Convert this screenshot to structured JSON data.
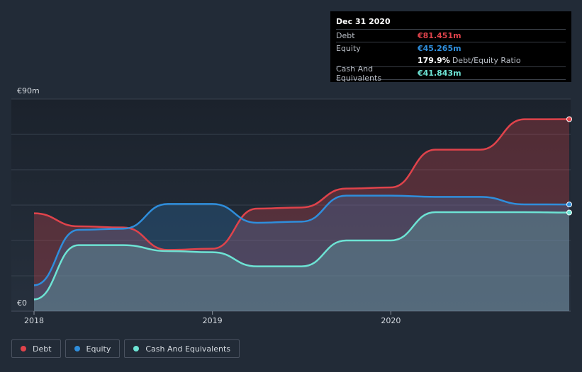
{
  "chart_data": {
    "type": "area",
    "currency_labels": {
      "top": "€90m",
      "bottom": "€0"
    },
    "ylim": [
      0,
      90
    ],
    "x_ticks": [
      {
        "label": "2018",
        "t": 2018.0
      },
      {
        "label": "2019",
        "t": 2019.0
      },
      {
        "label": "2020",
        "t": 2020.0
      }
    ],
    "xlim": [
      2018.0,
      2021.0
    ],
    "series": [
      {
        "name": "Debt",
        "color": "#e0434b",
        "points": [
          [
            2018.0,
            41.5
          ],
          [
            2018.25,
            36
          ],
          [
            2018.5,
            35.5
          ],
          [
            2018.75,
            26
          ],
          [
            2019.0,
            26.5
          ],
          [
            2019.25,
            43.5
          ],
          [
            2019.5,
            44
          ],
          [
            2019.75,
            52
          ],
          [
            2020.0,
            52.5
          ],
          [
            2020.25,
            68.5
          ],
          [
            2020.5,
            68.5
          ],
          [
            2020.75,
            81.4
          ],
          [
            2021.0,
            81.451
          ]
        ]
      },
      {
        "name": "Equity",
        "color": "#2f8edc",
        "points": [
          [
            2018.0,
            11
          ],
          [
            2018.25,
            34.5
          ],
          [
            2018.5,
            35
          ],
          [
            2018.75,
            45.5
          ],
          [
            2019.0,
            45.5
          ],
          [
            2019.25,
            37.5
          ],
          [
            2019.5,
            38
          ],
          [
            2019.75,
            49
          ],
          [
            2020.0,
            49
          ],
          [
            2020.25,
            48.5
          ],
          [
            2020.5,
            48.5
          ],
          [
            2020.75,
            45.3
          ],
          [
            2021.0,
            45.265
          ]
        ]
      },
      {
        "name": "Cash And Equivalents",
        "color": "#6de3d4",
        "points": [
          [
            2018.0,
            5
          ],
          [
            2018.25,
            28
          ],
          [
            2018.5,
            28
          ],
          [
            2018.75,
            25.5
          ],
          [
            2019.0,
            25
          ],
          [
            2019.25,
            19
          ],
          [
            2019.5,
            19
          ],
          [
            2019.75,
            30
          ],
          [
            2020.0,
            30
          ],
          [
            2020.25,
            42
          ],
          [
            2020.5,
            42
          ],
          [
            2020.75,
            42
          ],
          [
            2021.0,
            41.843
          ]
        ]
      }
    ]
  },
  "tooltip": {
    "date": "Dec 31 2020",
    "rows": [
      {
        "label": "Debt",
        "value": "€81.451m",
        "color": "#e0434b"
      },
      {
        "label": "Equity",
        "value": "€45.265m",
        "color": "#2f8edc"
      },
      {
        "label": "",
        "value": "179.9%",
        "sub": "Debt/Equity Ratio",
        "color": "#ffffff"
      },
      {
        "label": "Cash And Equivalents",
        "value": "€41.843m",
        "color": "#6de3d4"
      }
    ]
  },
  "legend": [
    {
      "label": "Debt",
      "color": "#e0434b"
    },
    {
      "label": "Equity",
      "color": "#2f8edc"
    },
    {
      "label": "Cash And Equivalents",
      "color": "#6de3d4"
    }
  ]
}
